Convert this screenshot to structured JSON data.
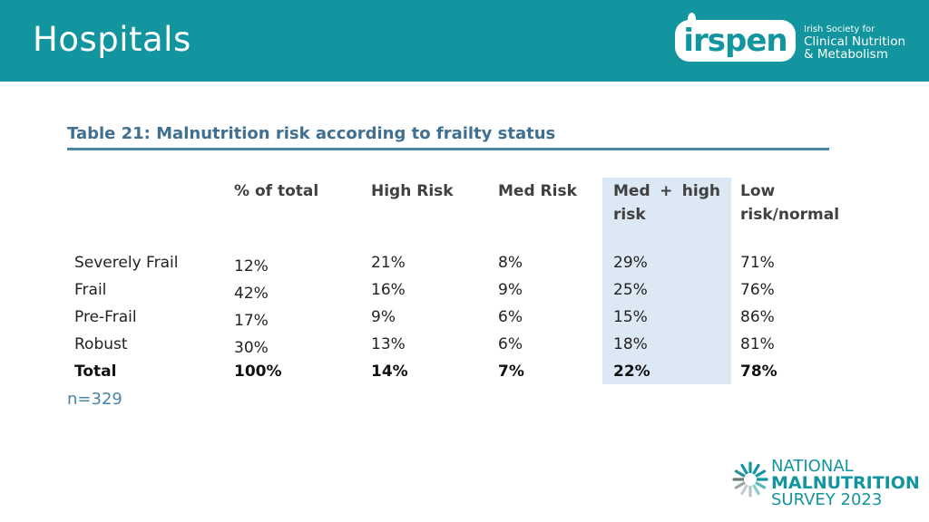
{
  "header": {
    "title": "Hospitals",
    "logo": {
      "wordmark": "irspen",
      "org_line1": "Irish Society for",
      "org_line2": "Clinical Nutrition",
      "org_line3": "& Metabolism"
    }
  },
  "table": {
    "caption": "Table 21: Malnutrition risk according to frailty status",
    "headers": [
      "% of total",
      "High Risk",
      "Med Risk",
      "Med  +  high risk",
      "Low risk/normal"
    ],
    "rows": [
      {
        "label": "Severely Frail",
        "values": [
          "12%",
          "21%",
          "8%",
          "29%",
          "71%"
        ]
      },
      {
        "label": "Frail",
        "values": [
          "42%",
          "16%",
          "9%",
          "25%",
          "76%"
        ]
      },
      {
        "label": "Pre-Frail",
        "values": [
          "17%",
          "9%",
          "6%",
          "15%",
          "86%"
        ]
      },
      {
        "label": "Robust",
        "values": [
          "30%",
          "13%",
          "6%",
          "18%",
          "81%"
        ]
      },
      {
        "label": "Total",
        "values": [
          "100%",
          "14%",
          "7%",
          "22%",
          "78%"
        ]
      }
    ],
    "note": "n=329"
  },
  "footer_logo": {
    "line1": "NATIONAL",
    "line2": "MALNUTRITION",
    "line3": "SURVEY 2023"
  },
  "colors": {
    "header_bg": "#12959f",
    "caption": "#3f6f91",
    "highlight": "#dde8f5"
  }
}
